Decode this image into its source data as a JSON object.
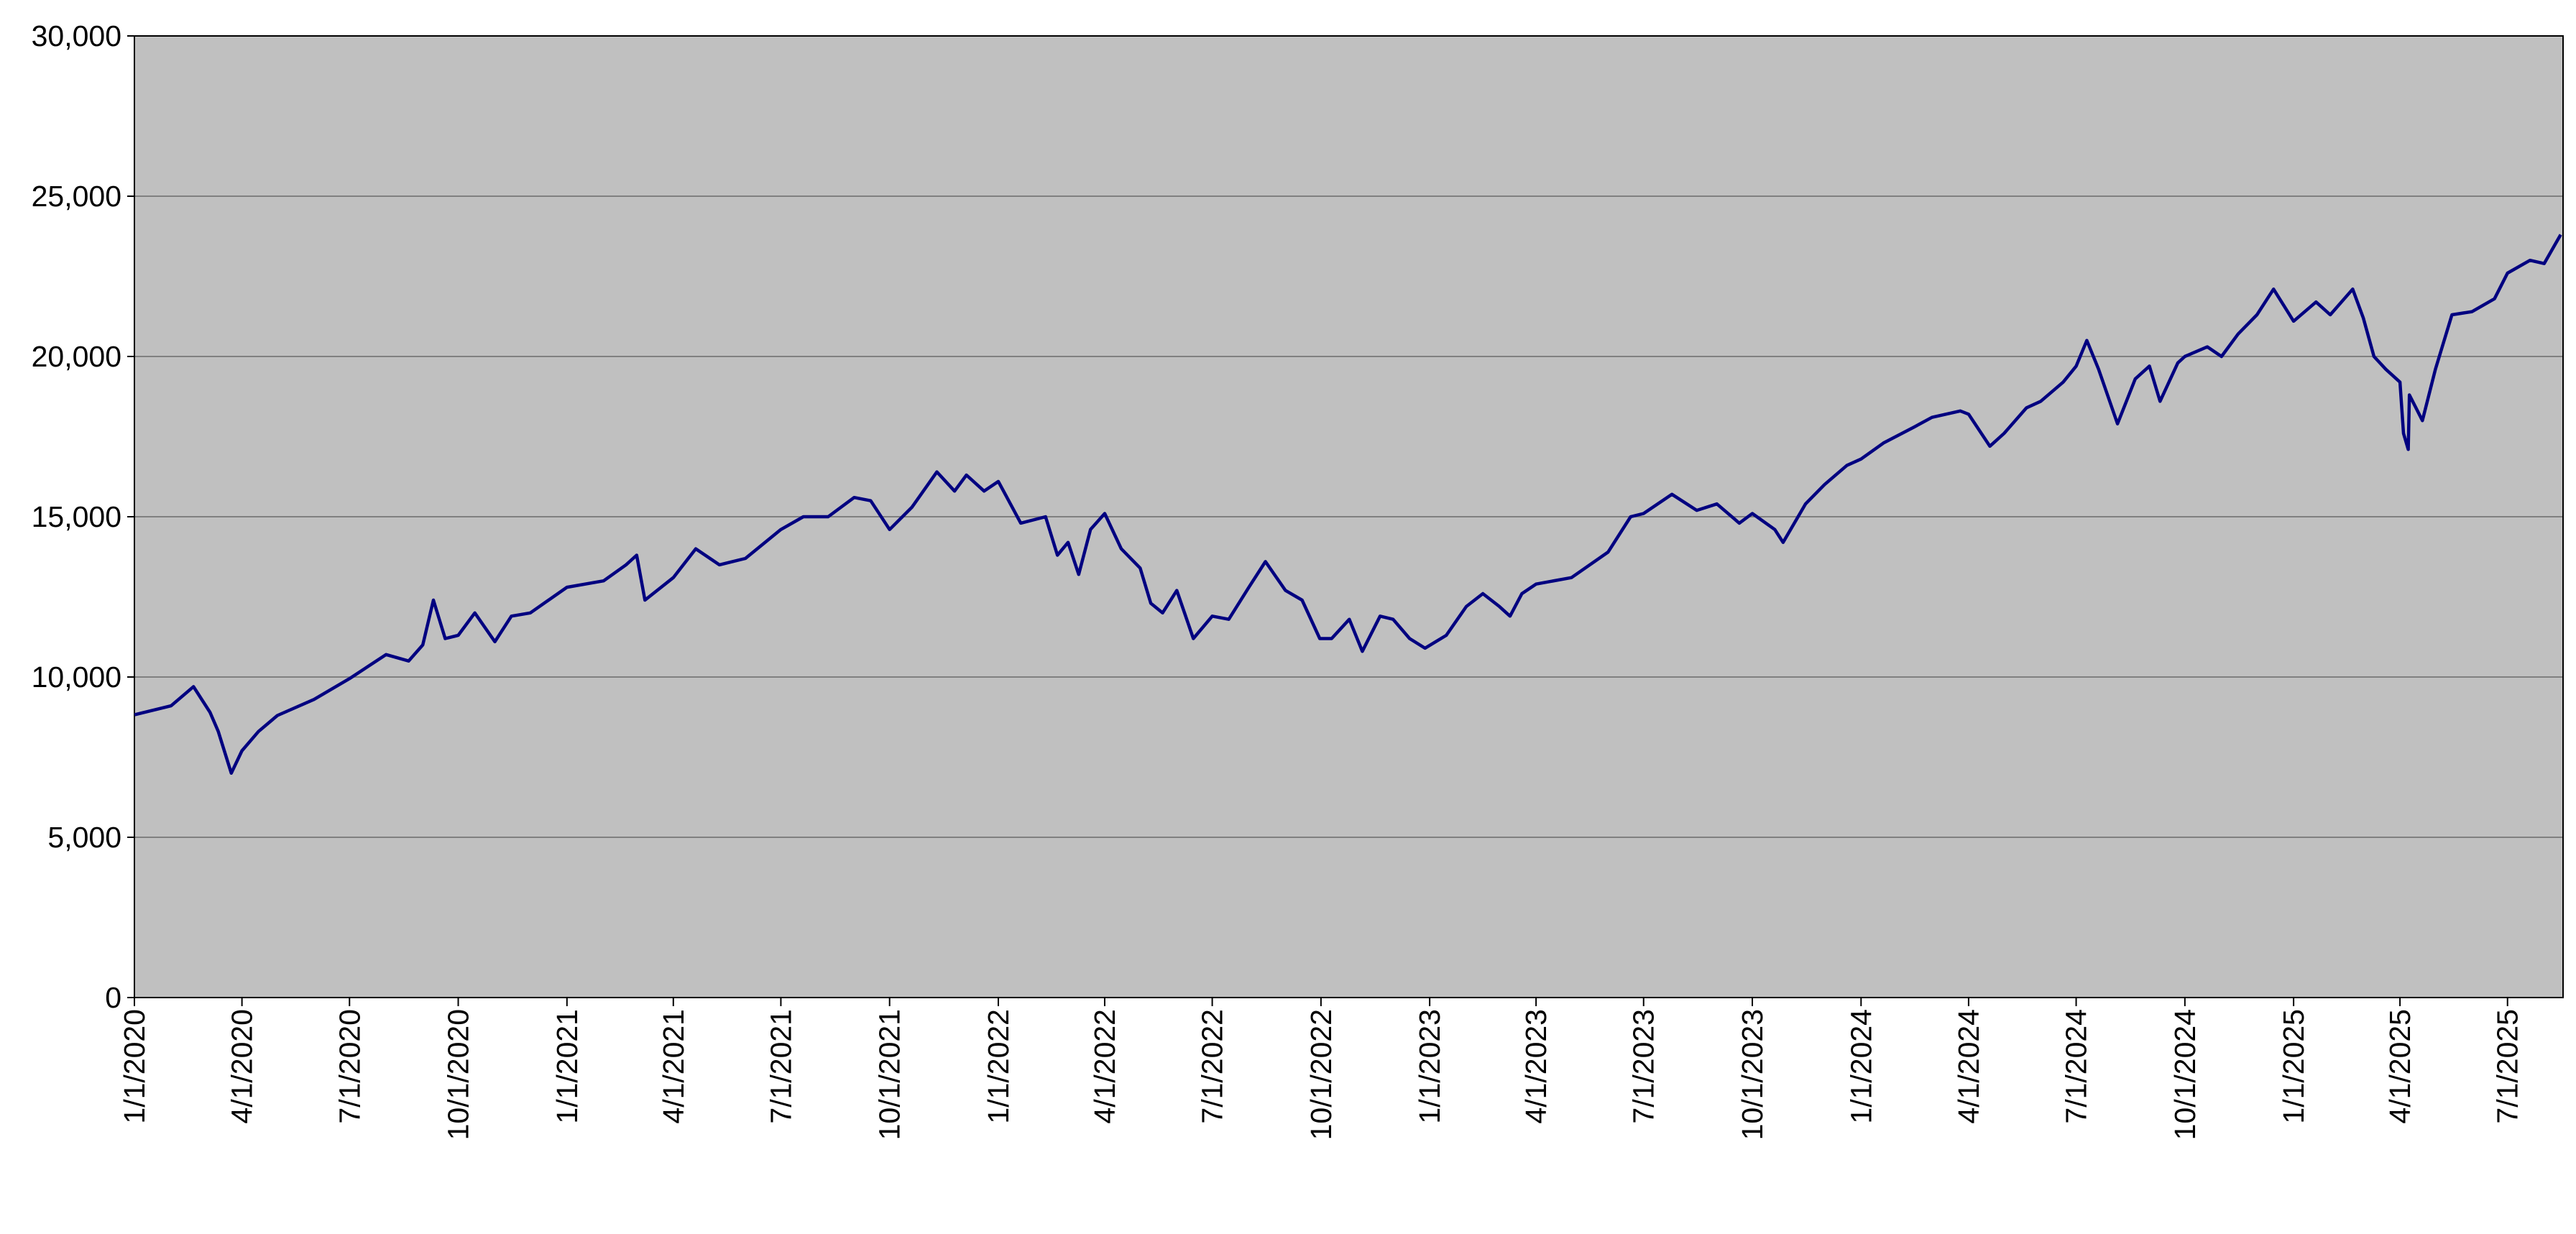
{
  "chart_data": {
    "type": "line",
    "x": [
      "1/1/2020",
      "2/1/2020",
      "2/20/2020",
      "3/5/2020",
      "3/12/2020",
      "3/23/2020",
      "4/1/2020",
      "4/15/2020",
      "5/1/2020",
      "6/1/2020",
      "7/1/2020",
      "8/1/2020",
      "8/20/2020",
      "9/1/2020",
      "9/10/2020",
      "9/20/2020",
      "10/1/2020",
      "10/15/2020",
      "11/1/2020",
      "11/15/2020",
      "12/1/2020",
      "1/1/2021",
      "2/1/2021",
      "2/20/2021",
      "3/1/2021",
      "3/8/2021",
      "4/1/2021",
      "4/20/2021",
      "5/10/2021",
      "6/1/2021",
      "7/1/2021",
      "7/20/2021",
      "8/10/2021",
      "9/1/2021",
      "9/15/2021",
      "10/1/2021",
      "10/20/2021",
      "11/10/2021",
      "11/25/2021",
      "12/5/2021",
      "12/20/2021",
      "1/1/2022",
      "1/20/2022",
      "2/10/2022",
      "2/20/2022",
      "3/1/2022",
      "3/10/2022",
      "3/20/2022",
      "4/1/2022",
      "4/15/2022",
      "5/1/2022",
      "5/10/2022",
      "5/20/2022",
      "6/1/2022",
      "6/15/2022",
      "7/1/2022",
      "7/15/2022",
      "8/1/2022",
      "8/15/2022",
      "9/1/2022",
      "9/15/2022",
      "9/30/2022",
      "10/10/2022",
      "10/25/2022",
      "11/5/2022",
      "11/20/2022",
      "12/1/2022",
      "12/15/2022",
      "12/28/2022",
      "1/15/2023",
      "2/1/2023",
      "2/15/2023",
      "3/1/2023",
      "3/10/2023",
      "3/20/2023",
      "4/1/2023",
      "5/1/2023",
      "6/1/2023",
      "6/20/2023",
      "7/1/2023",
      "7/25/2023",
      "8/15/2023",
      "9/1/2023",
      "9/20/2023",
      "10/1/2023",
      "10/20/2023",
      "10/27/2023",
      "11/15/2023",
      "12/1/2023",
      "12/20/2023",
      "1/1/2024",
      "1/20/2024",
      "2/15/2024",
      "3/1/2024",
      "3/25/2024",
      "4/1/2024",
      "4/19/2024",
      "5/1/2024",
      "5/20/2024",
      "6/1/2024",
      "6/20/2024",
      "7/1/2024",
      "7/10/2024",
      "7/20/2024",
      "8/5/2024",
      "8/20/2024",
      "9/1/2024",
      "9/10/2024",
      "9/25/2024",
      "10/1/2024",
      "10/20/2024",
      "11/1/2024",
      "11/15/2024",
      "12/1/2024",
      "12/15/2024",
      "1/1/2025",
      "1/20/2025",
      "2/1/2025",
      "2/20/2025",
      "3/1/2025",
      "3/10/2025",
      "3/20/2025",
      "4/1/2025",
      "4/4/2025",
      "4/8/2025",
      "4/9/2025",
      "4/20/2025",
      "5/1/2025",
      "5/15/2025",
      "6/1/2025",
      "6/20/2025",
      "7/1/2025",
      "7/20/2025",
      "8/1/2025",
      "8/15/2025"
    ],
    "series": [
      {
        "color": "#000080",
        "values": [
          8820,
          9100,
          9700,
          8900,
          8300,
          7000,
          7700,
          8300,
          8800,
          9300,
          9950,
          10700,
          10500,
          11000,
          12400,
          11200,
          11300,
          12000,
          11100,
          11900,
          12000,
          12800,
          13000,
          13500,
          13800,
          12400,
          13100,
          14000,
          13500,
          13700,
          14600,
          15000,
          15000,
          15600,
          15500,
          14600,
          15300,
          16400,
          15800,
          16300,
          15800,
          16100,
          14800,
          15000,
          13800,
          14200,
          13200,
          14600,
          15100,
          14000,
          13400,
          12300,
          12000,
          12700,
          11200,
          11900,
          11800,
          12800,
          13600,
          12700,
          12400,
          11200,
          11200,
          11800,
          10800,
          11900,
          11800,
          11200,
          10900,
          11300,
          12200,
          12600,
          12200,
          11900,
          12600,
          12900,
          13100,
          13900,
          15000,
          15100,
          15700,
          15200,
          15400,
          14800,
          15100,
          14600,
          14200,
          15400,
          16000,
          16600,
          16800,
          17300,
          17800,
          18100,
          18300,
          18200,
          17200,
          17600,
          18400,
          18600,
          19200,
          19700,
          20500,
          19600,
          17900,
          19300,
          19700,
          18600,
          19800,
          20000,
          20300,
          20000,
          20700,
          21300,
          22100,
          21100,
          21700,
          21300,
          22100,
          21200,
          20000,
          19600,
          19200,
          17600,
          17100,
          18800,
          18000,
          19600,
          21300,
          21400,
          21800,
          22600,
          23000,
          22900,
          23800
        ]
      }
    ],
    "xlim": [
      "1/1/2020",
      "8/17/2025"
    ],
    "xticks": [
      "1/1/2020",
      "4/1/2020",
      "7/1/2020",
      "10/1/2020",
      "1/1/2021",
      "4/1/2021",
      "7/1/2021",
      "10/1/2021",
      "1/1/2022",
      "4/1/2022",
      "7/1/2022",
      "10/1/2022",
      "1/1/2023",
      "4/1/2023",
      "7/1/2023",
      "10/1/2023",
      "1/1/2024",
      "4/1/2024",
      "7/1/2024",
      "10/1/2024",
      "1/1/2025",
      "4/1/2025",
      "7/1/2025"
    ],
    "ylim": [
      0,
      30000
    ],
    "yticks": [
      0,
      {
        "value": 5000,
        "label": "5,000"
      },
      {
        "value": 10000,
        "label": "10,000"
      },
      {
        "value": 15000,
        "label": "15,000"
      },
      {
        "value": 20000,
        "label": "20,000"
      },
      {
        "value": 25000,
        "label": "25,000"
      },
      {
        "value": 30000,
        "label": "30,000"
      }
    ],
    "grid": true
  }
}
